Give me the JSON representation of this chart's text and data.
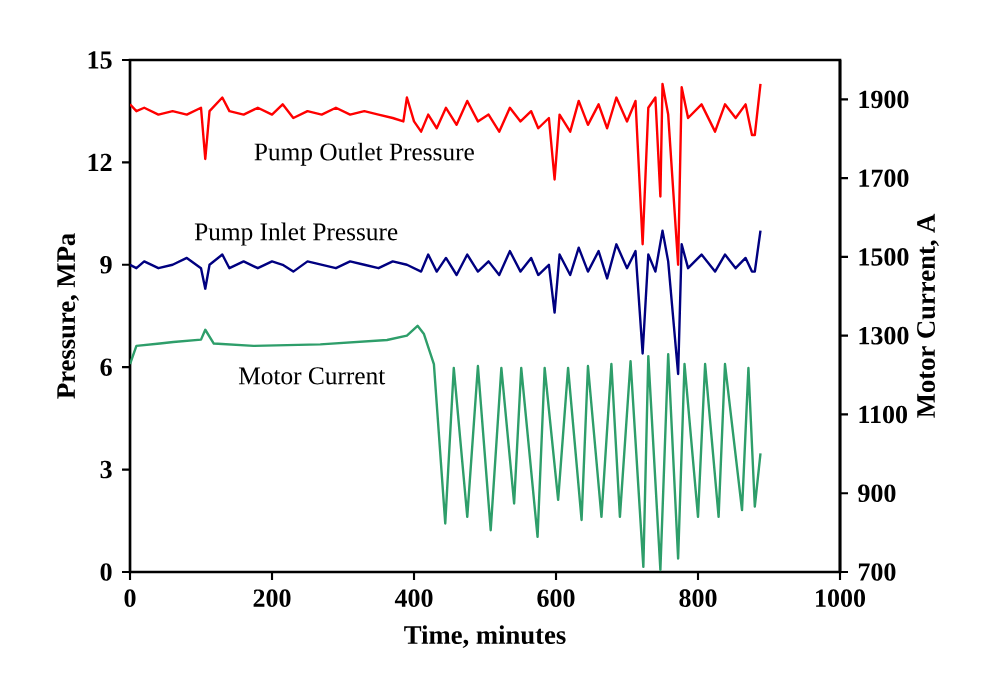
{
  "chart_data": {
    "type": "line",
    "xlabel": "Time,  minutes",
    "ylabel": "Pressure,  MPa",
    "y2label": "Motor  Current,  A",
    "xlim": [
      0,
      1000
    ],
    "xticks": [
      0,
      200,
      400,
      600,
      800,
      1000
    ],
    "ylim": [
      0,
      15
    ],
    "yticks": [
      0,
      3,
      6,
      9,
      12,
      15
    ],
    "y2lim": [
      700,
      2000
    ],
    "y2ticks": [
      700,
      900,
      1100,
      1300,
      1500,
      1700,
      1900
    ],
    "grid": false,
    "series": [
      {
        "name": "Pump Outlet Pressure",
        "color": "#ff0000",
        "axis": "y",
        "x": [
          0,
          9,
          20,
          40,
          60,
          80,
          100,
          106,
          112,
          130,
          140,
          160,
          180,
          200,
          215,
          230,
          250,
          270,
          290,
          310,
          330,
          350,
          370,
          385,
          390,
          400,
          410,
          420,
          432,
          445,
          460,
          475,
          490,
          505,
          520,
          535,
          550,
          565,
          575,
          590,
          598,
          605,
          620,
          632,
          645,
          660,
          672,
          685,
          700,
          712,
          722,
          730,
          740,
          747,
          750,
          758,
          772,
          777,
          786,
          805,
          824,
          838,
          853,
          867,
          876,
          880,
          888
        ],
        "values": [
          13.7,
          13.5,
          13.6,
          13.4,
          13.5,
          13.4,
          13.6,
          12.1,
          13.5,
          13.9,
          13.5,
          13.4,
          13.6,
          13.4,
          13.7,
          13.3,
          13.5,
          13.4,
          13.6,
          13.4,
          13.5,
          13.4,
          13.3,
          13.2,
          13.9,
          13.2,
          12.9,
          13.4,
          13.0,
          13.6,
          13.1,
          13.8,
          13.2,
          13.4,
          12.9,
          13.6,
          13.2,
          13.5,
          13.0,
          13.3,
          11.5,
          13.4,
          12.9,
          13.8,
          13.1,
          13.7,
          13.0,
          13.9,
          13.2,
          13.8,
          9.6,
          13.6,
          13.9,
          11.0,
          14.3,
          13.4,
          9.0,
          14.2,
          13.3,
          13.7,
          12.9,
          13.7,
          13.3,
          13.7,
          12.8,
          12.8,
          14.3
        ]
      },
      {
        "name": "Pump Inlet Pressure",
        "color": "#000080",
        "axis": "y",
        "x": [
          0,
          9,
          20,
          40,
          60,
          80,
          100,
          106,
          112,
          130,
          140,
          160,
          180,
          200,
          215,
          230,
          250,
          270,
          290,
          310,
          330,
          350,
          370,
          390,
          410,
          420,
          432,
          445,
          460,
          475,
          490,
          505,
          520,
          535,
          550,
          565,
          575,
          590,
          598,
          605,
          620,
          632,
          645,
          660,
          672,
          685,
          700,
          712,
          722,
          730,
          740,
          750,
          758,
          772,
          777,
          786,
          805,
          824,
          838,
          853,
          867,
          876,
          880,
          888
        ],
        "values": [
          9.0,
          8.9,
          9.1,
          8.9,
          9.0,
          9.2,
          8.9,
          8.3,
          9.0,
          9.3,
          8.9,
          9.1,
          8.9,
          9.1,
          9.0,
          8.8,
          9.1,
          9.0,
          8.9,
          9.1,
          9.0,
          8.9,
          9.1,
          9.0,
          8.8,
          9.3,
          8.8,
          9.2,
          8.7,
          9.3,
          8.8,
          9.1,
          8.7,
          9.4,
          8.8,
          9.2,
          8.7,
          9.0,
          7.6,
          9.3,
          8.7,
          9.5,
          8.8,
          9.4,
          8.6,
          9.6,
          8.9,
          9.4,
          6.4,
          9.3,
          8.8,
          10.0,
          9.1,
          5.8,
          9.6,
          8.9,
          9.3,
          8.8,
          9.3,
          8.9,
          9.2,
          8.8,
          8.8,
          10.0
        ]
      },
      {
        "name": "Motor Current",
        "color": "#2e9e6a",
        "axis": "y2",
        "x": [
          0,
          9,
          42,
          61,
          100,
          106,
          118,
          174,
          268,
          362,
          390,
          405,
          414,
          428,
          444,
          456,
          475,
          490,
          508,
          523,
          541,
          551,
          574,
          584,
          603,
          617,
          636,
          645,
          664,
          678,
          690,
          705,
          723,
          730,
          747,
          758,
          772,
          781,
          800,
          810,
          829,
          838,
          862,
          871,
          880,
          888
        ],
        "values": [
          1228,
          1274,
          1280,
          1284,
          1290,
          1315,
          1280,
          1274,
          1278,
          1289,
          1300,
          1325,
          1304,
          1228,
          823,
          1218,
          840,
          1223,
          806,
          1218,
          874,
          1218,
          789,
          1218,
          883,
          1218,
          832,
          1223,
          840,
          1228,
          840,
          1235,
          713,
          1248,
          705,
          1253,
          734,
          1228,
          840,
          1228,
          840,
          1228,
          857,
          1218,
          866,
          1001
        ]
      }
    ]
  }
}
